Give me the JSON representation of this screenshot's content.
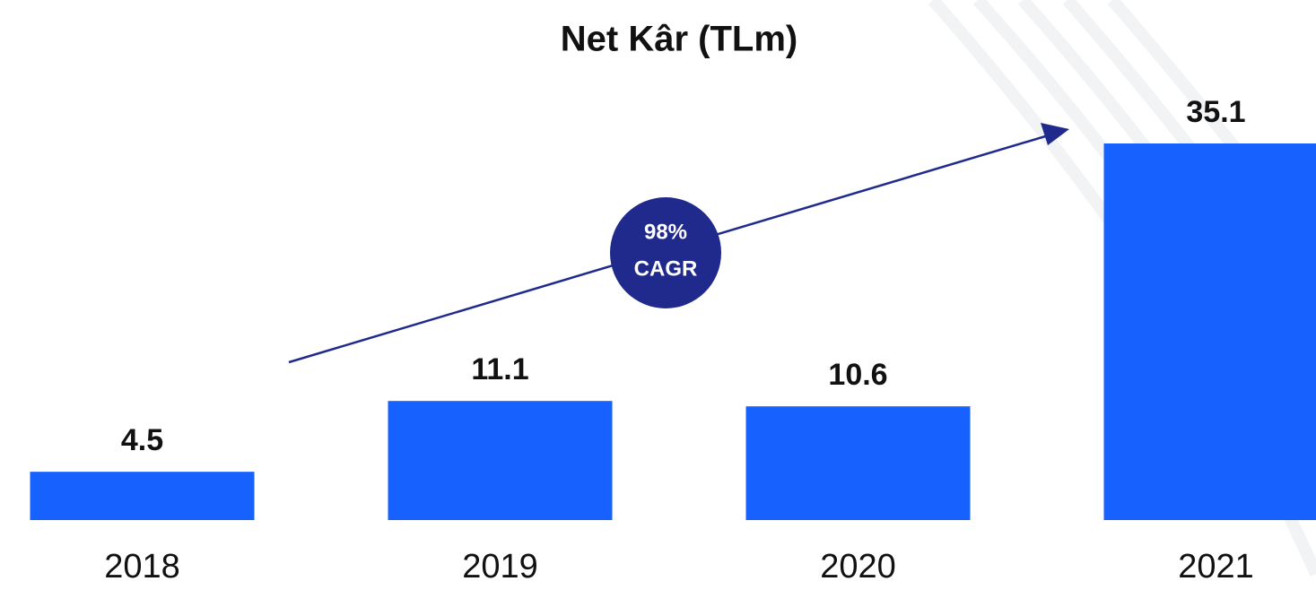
{
  "chart_data": {
    "type": "bar",
    "title": "Net Kâr (TLm)",
    "categories": [
      "2018",
      "2019",
      "2020",
      "2021"
    ],
    "values": [
      4.5,
      11.1,
      10.6,
      35.1
    ],
    "color": "#1762ff",
    "annotation": [
      "98%",
      "CAGR"
    ],
    "annotation_color": "#1f2a8c"
  }
}
